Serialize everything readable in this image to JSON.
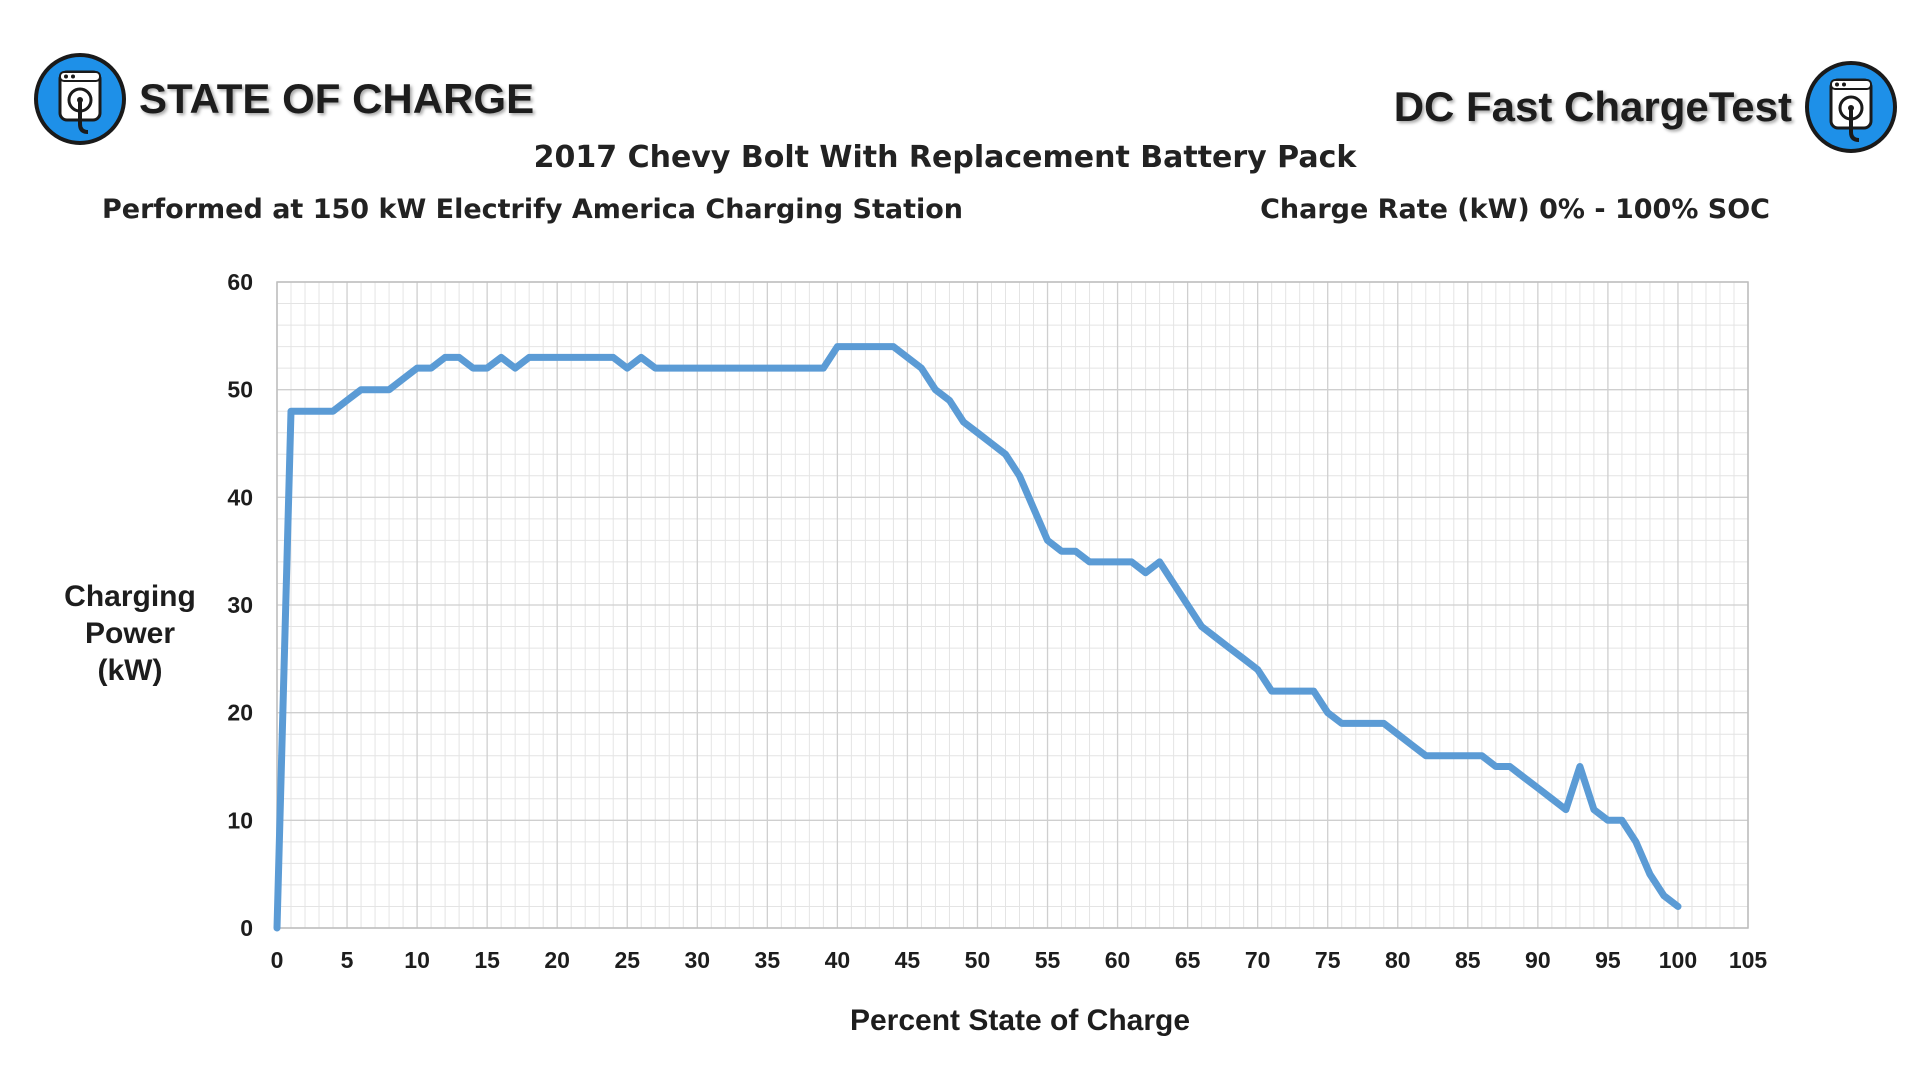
{
  "header": {
    "brand_left": "STATE OF CHARGE",
    "brand_right": "DC Fast ChargeTest",
    "logo_icon": "ev-charger-icon",
    "logo_color": "#1e90e8"
  },
  "chart_data": {
    "type": "line",
    "title": "2017 Chevy Bolt With Replacement Battery Pack",
    "subtitle_left": "Performed at 150 kW Electrify America Charging Station",
    "subtitle_right": "Charge Rate (kW) 0% - 100% SOC",
    "xlabel": "Percent State of Charge",
    "ylabel_lines": [
      "Charging",
      "Power",
      "(kW)"
    ],
    "xlim": [
      0,
      105
    ],
    "ylim": [
      0,
      60
    ],
    "x_ticks": [
      0,
      5,
      10,
      15,
      20,
      25,
      30,
      35,
      40,
      45,
      50,
      55,
      60,
      65,
      70,
      75,
      80,
      85,
      90,
      95,
      100,
      105
    ],
    "y_ticks": [
      0,
      10,
      20,
      30,
      40,
      50,
      60
    ],
    "grid": true,
    "line_color": "#5b9bd5",
    "series": [
      {
        "x": [
          0,
          1,
          2,
          3,
          4,
          5,
          6,
          7,
          8,
          9,
          10,
          11,
          12,
          13,
          14,
          15,
          16,
          17,
          18,
          19,
          20,
          21,
          22,
          23,
          24,
          25,
          26,
          27,
          28,
          29,
          30,
          31,
          32,
          33,
          34,
          35,
          36,
          37,
          38,
          39,
          40,
          41,
          42,
          43,
          44,
          45,
          46,
          47,
          48,
          49,
          50,
          51,
          52,
          53,
          54,
          55,
          56,
          57,
          58,
          59,
          60,
          61,
          62,
          63,
          64,
          65,
          66,
          67,
          68,
          69,
          70,
          71,
          72,
          73,
          74,
          75,
          76,
          77,
          78,
          79,
          80,
          81,
          82,
          83,
          84,
          85,
          86,
          87,
          88,
          89,
          90,
          91,
          92,
          93,
          94,
          95,
          96,
          97,
          98,
          99,
          100
        ],
        "y": [
          0,
          48,
          48,
          48,
          48,
          49,
          50,
          50,
          50,
          51,
          52,
          52,
          53,
          53,
          52,
          52,
          53,
          52,
          53,
          53,
          53,
          53,
          53,
          53,
          53,
          52,
          53,
          52,
          52,
          52,
          52,
          52,
          52,
          52,
          52,
          52,
          52,
          52,
          52,
          52,
          54,
          54,
          54,
          54,
          54,
          53,
          52,
          50,
          49,
          47,
          46,
          45,
          44,
          42,
          39,
          36,
          35,
          35,
          34,
          34,
          34,
          34,
          33,
          34,
          32,
          30,
          28,
          27,
          26,
          25,
          24,
          22,
          22,
          22,
          22,
          20,
          19,
          19,
          19,
          19,
          18,
          17,
          16,
          16,
          16,
          16,
          16,
          15,
          15,
          14,
          13,
          12,
          11,
          15,
          11,
          10,
          10,
          8,
          5,
          3,
          2
        ]
      }
    ]
  }
}
